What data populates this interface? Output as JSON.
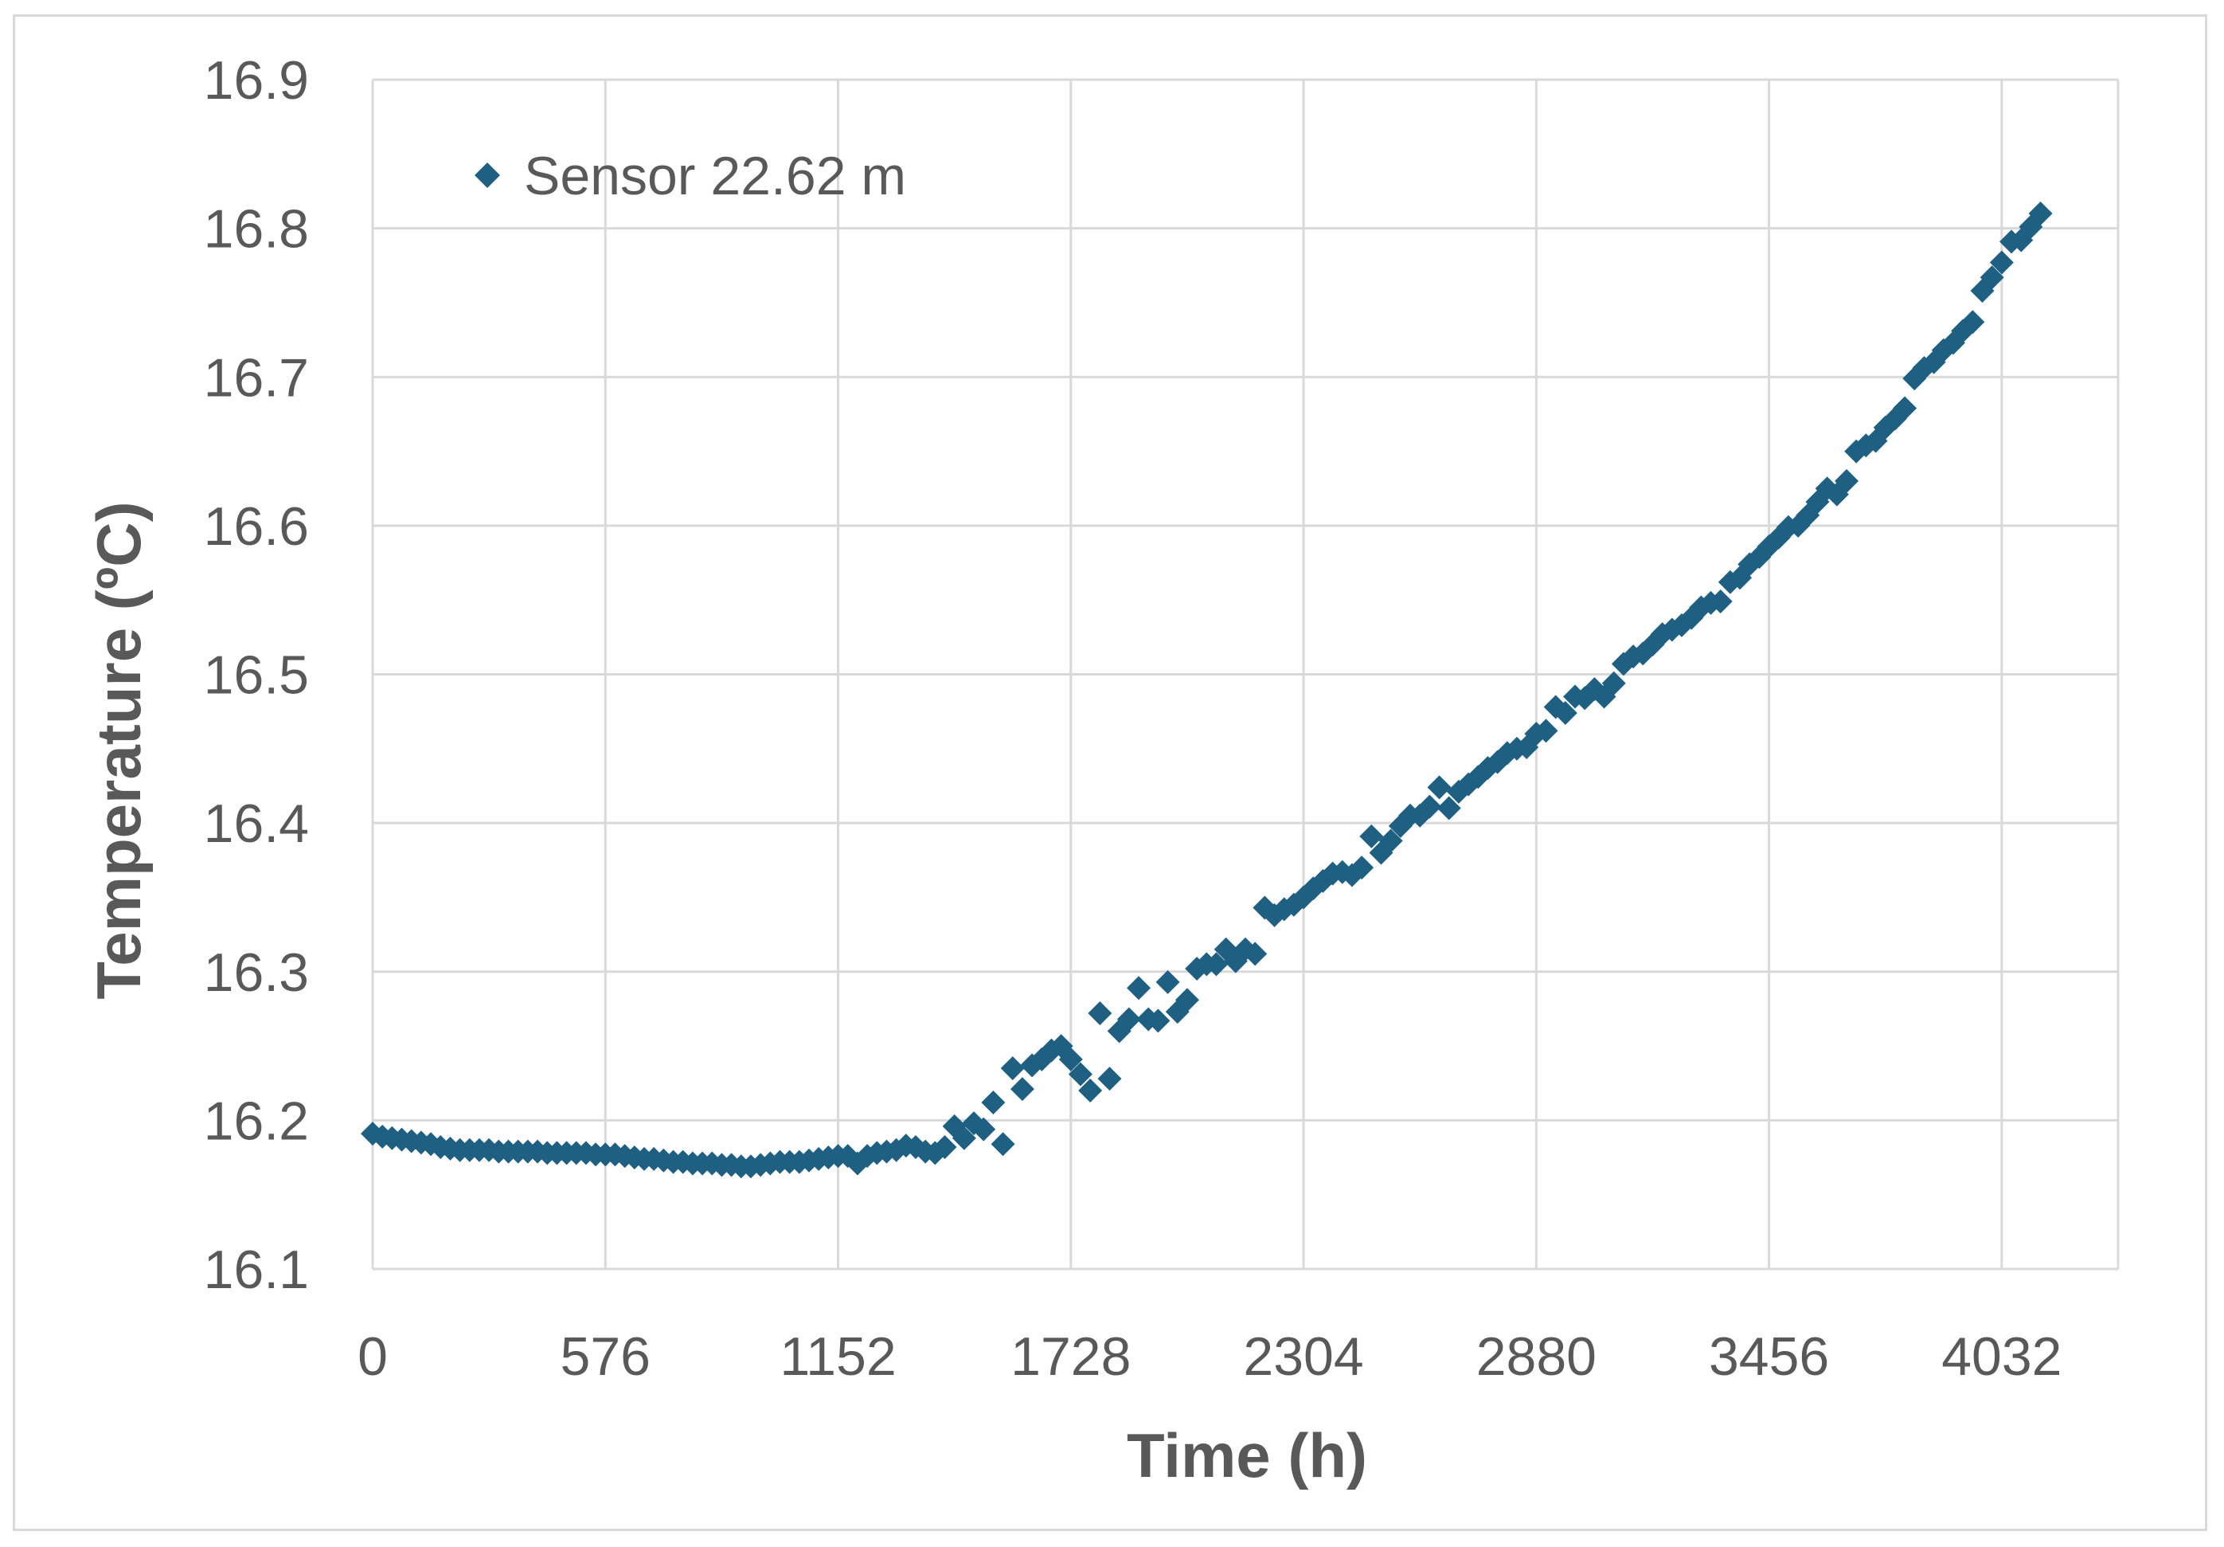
{
  "chart_data": {
    "type": "scatter",
    "title": "",
    "xlabel": "Time (h)",
    "ylabel": "Temperature (ºC)",
    "xlim": [
      0,
      4320
    ],
    "ylim": [
      16.1,
      16.9
    ],
    "x_ticks": [
      "0",
      "576",
      "1152",
      "1728",
      "2304",
      "2880",
      "3456",
      "4032"
    ],
    "y_ticks": [
      "16.1",
      "16.2",
      "16.3",
      "16.4",
      "16.5",
      "16.6",
      "16.7",
      "16.8",
      "16.9"
    ],
    "grid": true,
    "legend_position": "top-left",
    "marker": "diamond",
    "series": [
      {
        "name": "Sensor 22.62 m",
        "color": "#1f5f82",
        "points": [
          [
            0,
            16.191
          ],
          [
            24,
            16.189
          ],
          [
            48,
            16.188
          ],
          [
            72,
            16.187
          ],
          [
            96,
            16.186
          ],
          [
            120,
            16.185
          ],
          [
            144,
            16.184
          ],
          [
            168,
            16.182
          ],
          [
            192,
            16.181
          ],
          [
            216,
            16.18
          ],
          [
            240,
            16.18
          ],
          [
            264,
            16.18
          ],
          [
            288,
            16.18
          ],
          [
            312,
            16.179
          ],
          [
            336,
            16.179
          ],
          [
            360,
            16.179
          ],
          [
            384,
            16.179
          ],
          [
            408,
            16.179
          ],
          [
            432,
            16.178
          ],
          [
            456,
            16.178
          ],
          [
            480,
            16.178
          ],
          [
            504,
            16.178
          ],
          [
            528,
            16.178
          ],
          [
            552,
            16.177
          ],
          [
            576,
            16.177
          ],
          [
            600,
            16.177
          ],
          [
            624,
            16.176
          ],
          [
            648,
            16.175
          ],
          [
            672,
            16.174
          ],
          [
            696,
            16.174
          ],
          [
            720,
            16.173
          ],
          [
            744,
            16.172
          ],
          [
            768,
            16.172
          ],
          [
            792,
            16.171
          ],
          [
            816,
            16.171
          ],
          [
            840,
            16.171
          ],
          [
            864,
            16.17
          ],
          [
            888,
            16.17
          ],
          [
            912,
            16.169
          ],
          [
            936,
            16.169
          ],
          [
            960,
            16.17
          ],
          [
            984,
            16.171
          ],
          [
            1008,
            16.172
          ],
          [
            1032,
            16.172
          ],
          [
            1056,
            16.172
          ],
          [
            1080,
            16.173
          ],
          [
            1104,
            16.174
          ],
          [
            1128,
            16.175
          ],
          [
            1152,
            16.176
          ],
          [
            1176,
            16.176
          ],
          [
            1200,
            16.171
          ],
          [
            1224,
            16.176
          ],
          [
            1248,
            16.178
          ],
          [
            1272,
            16.179
          ],
          [
            1296,
            16.18
          ],
          [
            1320,
            16.183
          ],
          [
            1344,
            16.182
          ],
          [
            1368,
            16.179
          ],
          [
            1392,
            16.178
          ],
          [
            1416,
            16.182
          ],
          [
            1440,
            16.196
          ],
          [
            1464,
            16.188
          ],
          [
            1488,
            16.198
          ],
          [
            1512,
            16.194
          ],
          [
            1536,
            16.212
          ],
          [
            1560,
            16.184
          ],
          [
            1584,
            16.235
          ],
          [
            1608,
            16.221
          ],
          [
            1632,
            16.237
          ],
          [
            1656,
            16.241
          ],
          [
            1680,
            16.247
          ],
          [
            1704,
            16.25
          ],
          [
            1728,
            16.241
          ],
          [
            1752,
            16.231
          ],
          [
            1776,
            16.22
          ],
          [
            1800,
            16.272
          ],
          [
            1824,
            16.228
          ],
          [
            1848,
            16.26
          ],
          [
            1872,
            16.268
          ],
          [
            1896,
            16.289
          ],
          [
            1920,
            16.268
          ],
          [
            1944,
            16.267
          ],
          [
            1968,
            16.293
          ],
          [
            1992,
            16.273
          ],
          [
            2016,
            16.281
          ],
          [
            2040,
            16.302
          ],
          [
            2064,
            16.305
          ],
          [
            2088,
            16.305
          ],
          [
            2112,
            16.315
          ],
          [
            2136,
            16.307
          ],
          [
            2160,
            16.315
          ],
          [
            2184,
            16.312
          ],
          [
            2208,
            16.343
          ],
          [
            2232,
            16.338
          ],
          [
            2256,
            16.342
          ],
          [
            2280,
            16.345
          ],
          [
            2304,
            16.35
          ],
          [
            2328,
            16.356
          ],
          [
            2352,
            16.361
          ],
          [
            2376,
            16.366
          ],
          [
            2400,
            16.367
          ],
          [
            2424,
            16.365
          ],
          [
            2448,
            16.37
          ],
          [
            2472,
            16.391
          ],
          [
            2496,
            16.38
          ],
          [
            2520,
            16.388
          ],
          [
            2544,
            16.398
          ],
          [
            2568,
            16.405
          ],
          [
            2592,
            16.405
          ],
          [
            2616,
            16.411
          ],
          [
            2640,
            16.424
          ],
          [
            2664,
            16.41
          ],
          [
            2688,
            16.421
          ],
          [
            2712,
            16.426
          ],
          [
            2736,
            16.431
          ],
          [
            2760,
            16.437
          ],
          [
            2784,
            16.441
          ],
          [
            2808,
            16.447
          ],
          [
            2832,
            16.45
          ],
          [
            2856,
            16.451
          ],
          [
            2880,
            16.46
          ],
          [
            2904,
            16.462
          ],
          [
            2928,
            16.478
          ],
          [
            2952,
            16.474
          ],
          [
            2976,
            16.485
          ],
          [
            3000,
            16.484
          ],
          [
            3024,
            16.49
          ],
          [
            3048,
            16.485
          ],
          [
            3072,
            16.494
          ],
          [
            3096,
            16.507
          ],
          [
            3120,
            16.512
          ],
          [
            3144,
            16.514
          ],
          [
            3168,
            16.52
          ],
          [
            3192,
            16.527
          ],
          [
            3216,
            16.53
          ],
          [
            3240,
            16.533
          ],
          [
            3264,
            16.538
          ],
          [
            3288,
            16.545
          ],
          [
            3312,
            16.548
          ],
          [
            3336,
            16.549
          ],
          [
            3360,
            16.562
          ],
          [
            3384,
            16.565
          ],
          [
            3408,
            16.574
          ],
          [
            3432,
            16.579
          ],
          [
            3456,
            16.586
          ],
          [
            3480,
            16.592
          ],
          [
            3504,
            16.599
          ],
          [
            3528,
            16.6
          ],
          [
            3552,
            16.607
          ],
          [
            3576,
            16.616
          ],
          [
            3600,
            16.625
          ],
          [
            3624,
            16.621
          ],
          [
            3648,
            16.63
          ],
          [
            3672,
            16.65
          ],
          [
            3696,
            16.654
          ],
          [
            3720,
            16.657
          ],
          [
            3744,
            16.666
          ],
          [
            3768,
            16.672
          ],
          [
            3792,
            16.679
          ],
          [
            3816,
            16.699
          ],
          [
            3840,
            16.706
          ],
          [
            3864,
            16.71
          ],
          [
            3888,
            16.718
          ],
          [
            3912,
            16.723
          ],
          [
            3936,
            16.731
          ],
          [
            3960,
            16.737
          ],
          [
            3984,
            16.758
          ],
          [
            4008,
            16.767
          ],
          [
            4032,
            16.777
          ],
          [
            4056,
            16.791
          ],
          [
            4080,
            16.792
          ],
          [
            4104,
            16.801
          ],
          [
            4128,
            16.81
          ]
        ]
      }
    ]
  }
}
